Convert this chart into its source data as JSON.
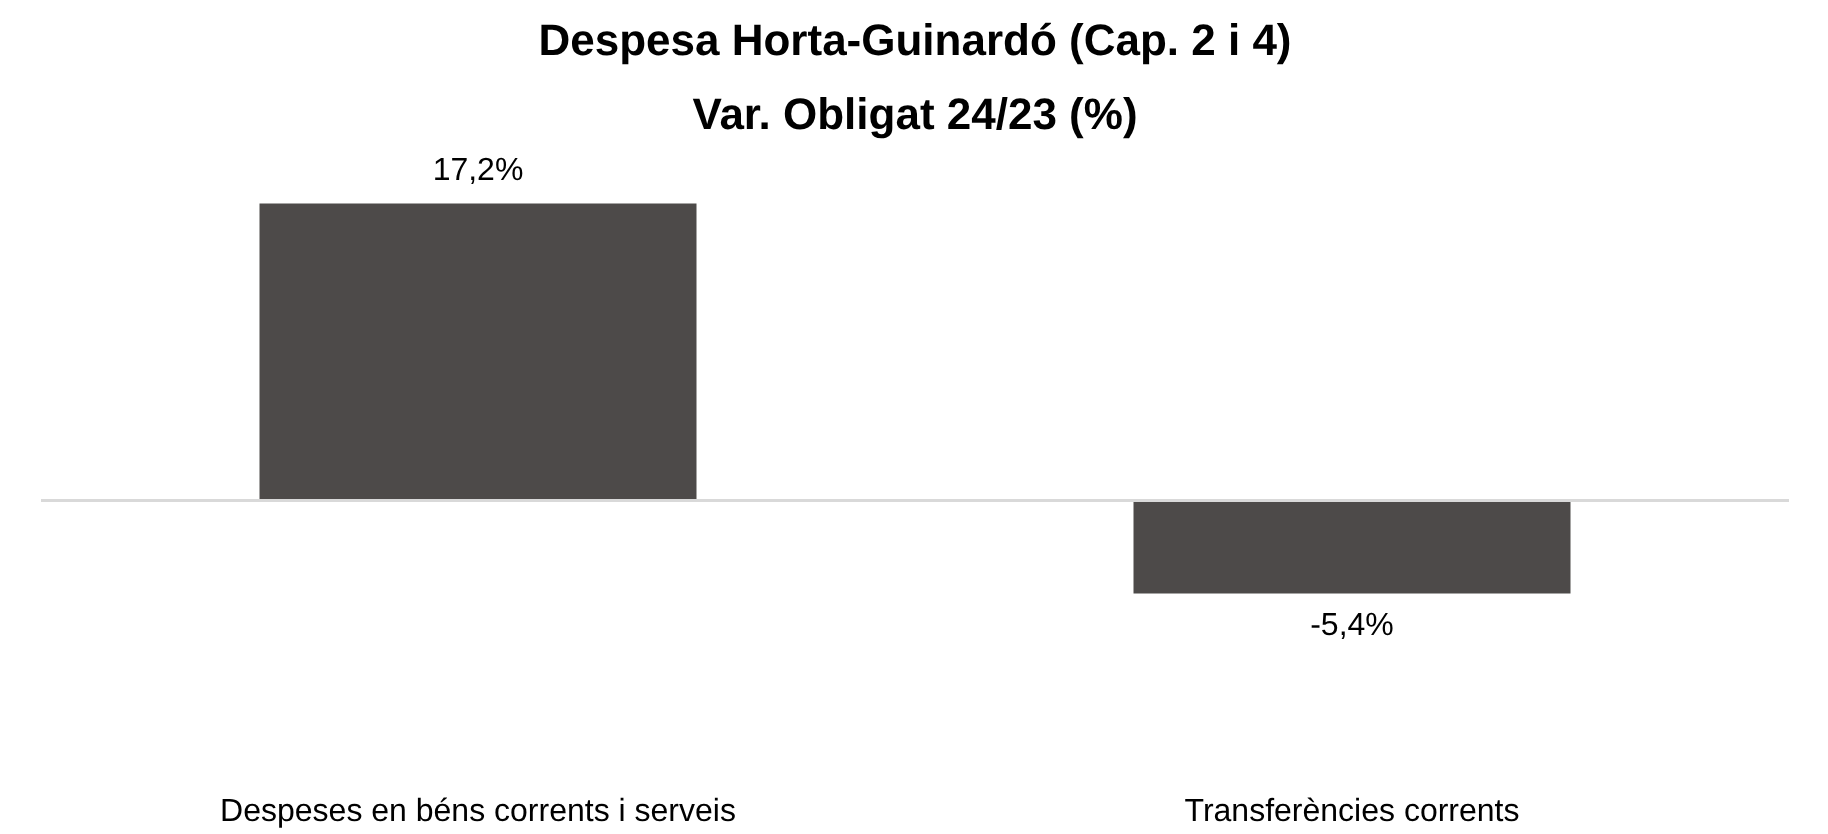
{
  "chart_data": {
    "type": "bar",
    "title": "Despesa Horta-Guinardó (Cap. 2 i 4)",
    "subtitle": "Var. Obligat 24/23 (%)",
    "categories": [
      "Despeses en béns corrents i serveis",
      "Transferències corrents"
    ],
    "values": [
      17.2,
      -5.4
    ],
    "value_labels": [
      "17,2%",
      "-5,4%"
    ],
    "color": "#4d4a49",
    "grid": false
  }
}
